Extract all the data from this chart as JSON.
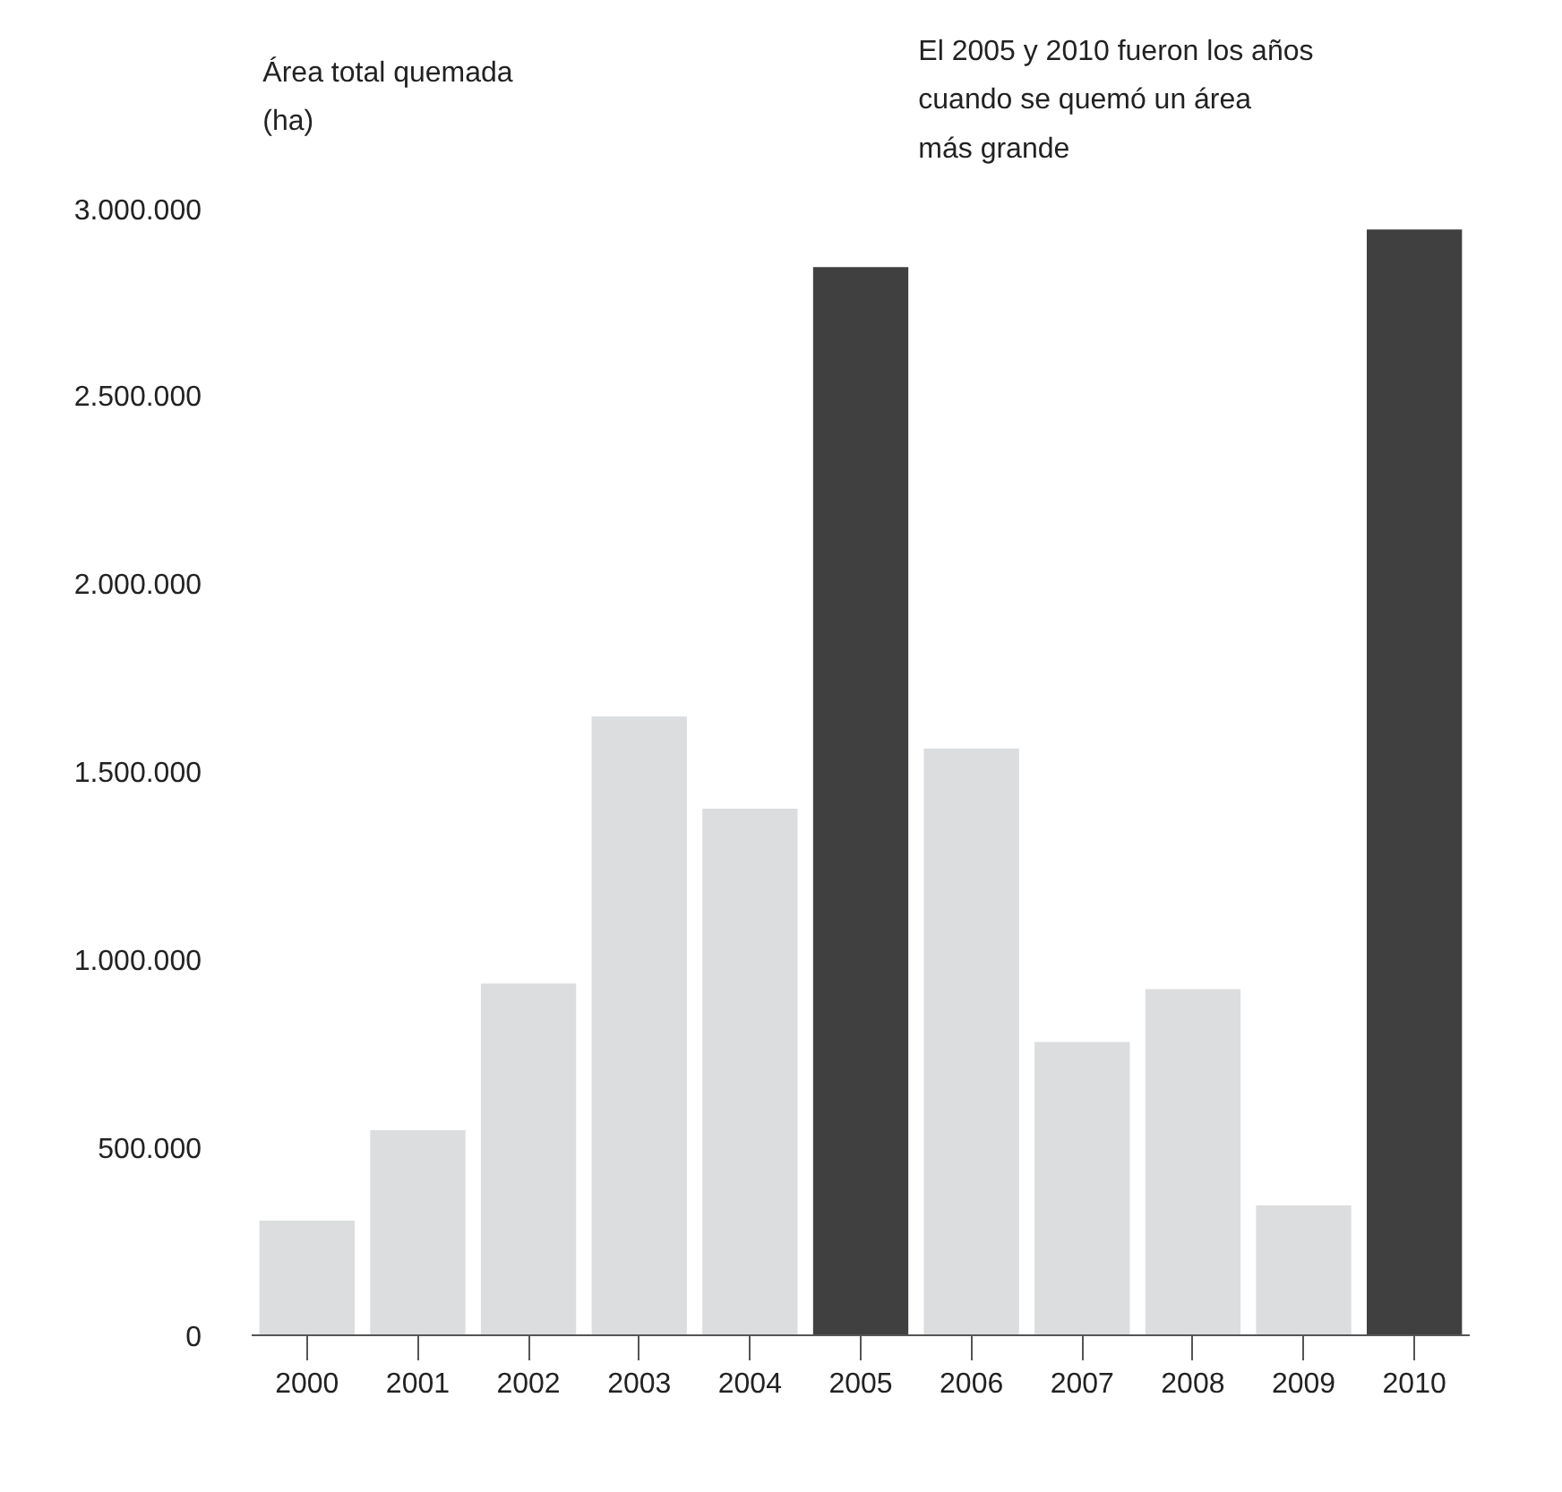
{
  "chart_data": {
    "type": "bar",
    "ylabel": "Área total quemada\n(ha)",
    "annotations": [
      "El 2005 y 2010 fueron los años\ncuando se quemó un área\nmás grande"
    ],
    "categories": [
      "2000",
      "2001",
      "2002",
      "2003",
      "2004",
      "2005",
      "2006",
      "2007",
      "2008",
      "2009",
      "2010"
    ],
    "values": [
      305000,
      545000,
      935000,
      1645000,
      1400000,
      2840000,
      1560000,
      780000,
      920000,
      345000,
      2940000
    ],
    "colors": [
      "#dcdddf",
      "#dcdddf",
      "#dcdddf",
      "#dcdddf",
      "#dcdddf",
      "#404041",
      "#dcdddf",
      "#dcdddf",
      "#dcdddf",
      "#dcdddf",
      "#404041"
    ],
    "ylim": [
      0,
      3000000
    ],
    "yticks": [
      {
        "value": 0,
        "label": "0"
      },
      {
        "value": 500000,
        "label": "500.000"
      },
      {
        "value": 1000000,
        "label": "1.000.000"
      },
      {
        "value": 1500000,
        "label": "1.500.000"
      },
      {
        "value": 2000000,
        "label": "2.000.000"
      },
      {
        "value": 2500000,
        "label": "2.500.000"
      },
      {
        "value": 3000000,
        "label": "3.000.000"
      }
    ],
    "grid": false
  }
}
